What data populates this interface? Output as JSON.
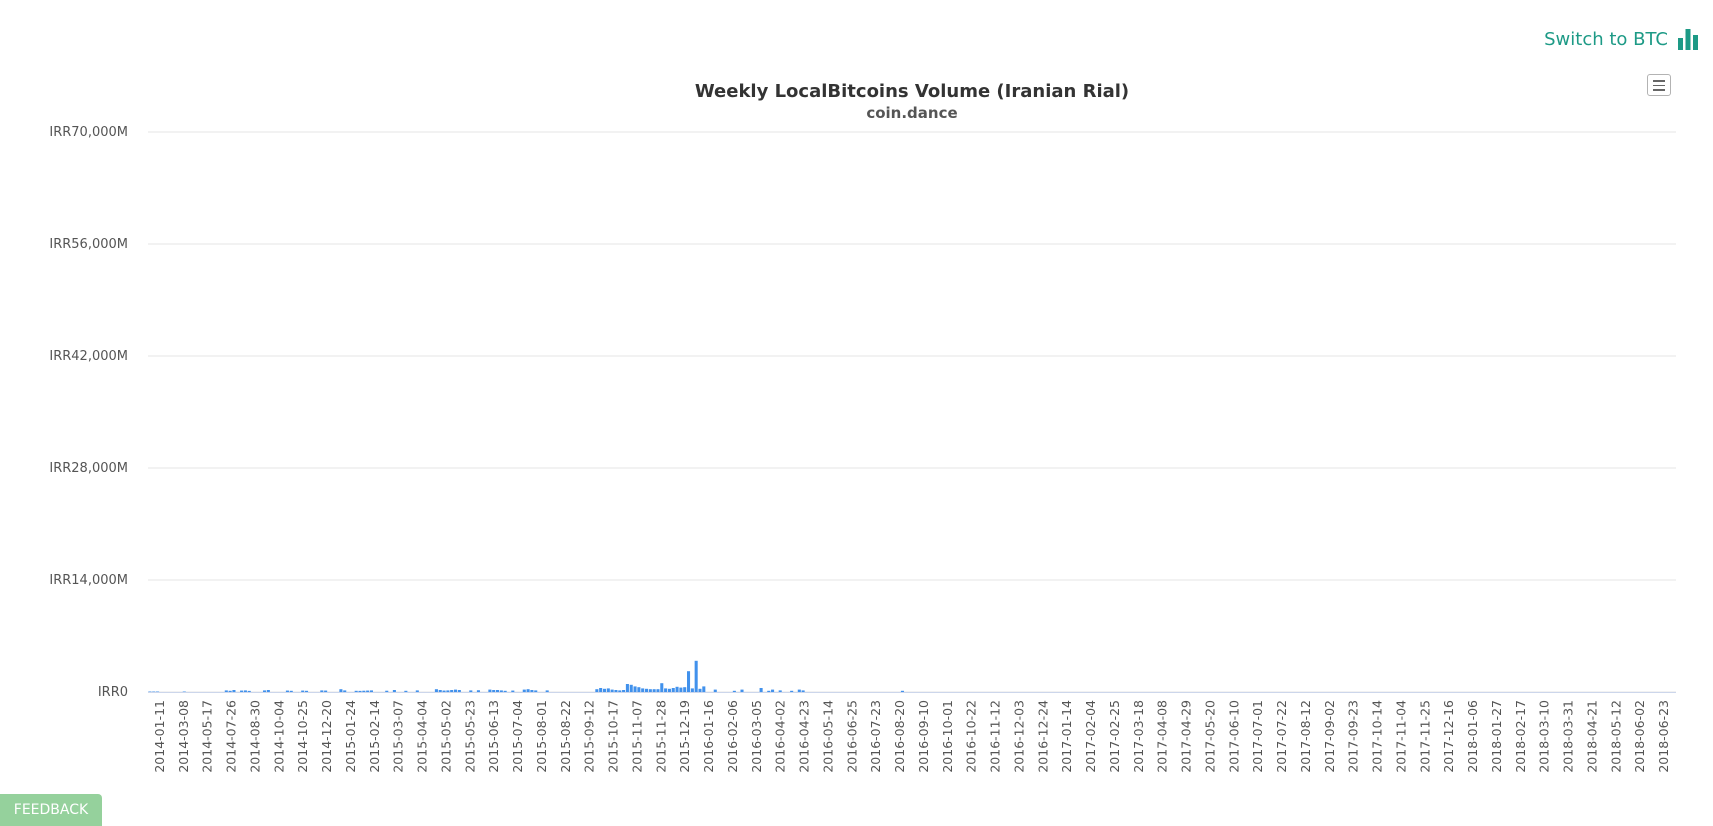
{
  "header": {
    "switch_label": "Switch to BTC",
    "switch_icon": "bar-chart-icon",
    "accent_color": "#1d9a86"
  },
  "feedback": {
    "label": "FEEDBACK",
    "color": "#95d19c"
  },
  "menu": {
    "icon": "hamburger-menu-icon"
  },
  "chart_data": {
    "type": "bar",
    "title": "Weekly LocalBitcoins Volume (Iranian Rial)",
    "subtitle": "coin.dance",
    "xlabel": "",
    "ylabel": "",
    "currency_prefix": "IRR",
    "unit_suffix": "M",
    "ylim": [
      0,
      70000
    ],
    "yticks": [
      0,
      14000,
      28000,
      42000,
      56000,
      70000
    ],
    "grid": true,
    "legend": "none",
    "bar_color": "#4191ec",
    "start_date": "2014-01-11",
    "xtick_labels": [
      "2014-01-11",
      "2014-03-08",
      "2014-05-17",
      "2014-07-26",
      "2014-08-30",
      "2014-10-04",
      "2014-10-25",
      "2014-12-20",
      "2015-01-24",
      "2015-02-14",
      "2015-03-07",
      "2015-04-04",
      "2015-05-02",
      "2015-05-23",
      "2015-06-13",
      "2015-07-04",
      "2015-08-01",
      "2015-08-22",
      "2015-09-12",
      "2015-10-17",
      "2015-11-07",
      "2015-11-28",
      "2015-12-19",
      "2016-01-16",
      "2016-02-06",
      "2016-03-05",
      "2016-04-02",
      "2016-04-23",
      "2016-05-14",
      "2016-06-25",
      "2016-07-23",
      "2016-08-20",
      "2016-09-10",
      "2016-10-01",
      "2016-10-22",
      "2016-11-12",
      "2016-12-03",
      "2016-12-24",
      "2017-01-14",
      "2017-02-04",
      "2017-02-25",
      "2017-03-18",
      "2017-04-08",
      "2017-04-29",
      "2017-05-20",
      "2017-06-10",
      "2017-07-01",
      "2017-07-22",
      "2017-08-12",
      "2017-09-02",
      "2017-09-23",
      "2017-10-14",
      "2017-11-04",
      "2017-11-25",
      "2017-12-16",
      "2018-01-06",
      "2018-01-27",
      "2018-02-17",
      "2018-03-10",
      "2018-03-31",
      "2018-04-21",
      "2018-05-12",
      "2018-06-02",
      "2018-06-23"
    ],
    "values": [
      60,
      60,
      60,
      0,
      0,
      0,
      0,
      0,
      0,
      60,
      0,
      0,
      0,
      0,
      0,
      0,
      0,
      0,
      0,
      0,
      200,
      150,
      250,
      0,
      180,
      200,
      140,
      0,
      0,
      0,
      200,
      250,
      0,
      0,
      0,
      0,
      180,
      150,
      0,
      0,
      180,
      150,
      0,
      0,
      0,
      200,
      180,
      0,
      0,
      0,
      350,
      200,
      0,
      0,
      150,
      140,
      160,
      180,
      200,
      0,
      0,
      0,
      160,
      0,
      250,
      0,
      0,
      150,
      0,
      0,
      200,
      0,
      0,
      0,
      0,
      350,
      250,
      180,
      200,
      250,
      300,
      250,
      0,
      0,
      200,
      0,
      220,
      0,
      0,
      300,
      250,
      250,
      200,
      150,
      0,
      180,
      0,
      0,
      300,
      350,
      250,
      200,
      0,
      0,
      200,
      0,
      0,
      0,
      0,
      0,
      0,
      0,
      0,
      0,
      0,
      0,
      0,
      350,
      500,
      400,
      450,
      300,
      250,
      200,
      250,
      1000,
      900,
      700,
      600,
      450,
      400,
      350,
      350,
      350,
      1100,
      450,
      400,
      500,
      650,
      550,
      600,
      2600,
      450,
      3900,
      400,
      700,
      0,
      0,
      300,
      0,
      0,
      0,
      0,
      150,
      0,
      300,
      0,
      0,
      0,
      0,
      500,
      0,
      150,
      300,
      0,
      200,
      0,
      0,
      150,
      0,
      300,
      200,
      0,
      0,
      0,
      0,
      0,
      0,
      0,
      0,
      0,
      0,
      0,
      0,
      0,
      0,
      0,
      0,
      0,
      0,
      0,
      0,
      0,
      0,
      0,
      0,
      0,
      150,
      0,
      0,
      0,
      0,
      0,
      0,
      0,
      0,
      0,
      0,
      0,
      0,
      0,
      0,
      0,
      0,
      0,
      0,
      0,
      0,
      0,
      0,
      0,
      0,
      0,
      0,
      0,
      0,
      0,
      0,
      0,
      0,
      0,
      0,
      0,
      0,
      0,
      0,
      0,
      0,
      0,
      0,
      0,
      0,
      0,
      0,
      0,
      0,
      0,
      0,
      0,
      0,
      0,
      0,
      0,
      0,
      0,
      0,
      0,
      0,
      0,
      0,
      0,
      0,
      0,
      0,
      0,
      0,
      0,
      0,
      0,
      0,
      0,
      0,
      0,
      0,
      0,
      0,
      0,
      0,
      0,
      0,
      0,
      0,
      0,
      0,
      0,
      0,
      0,
      0,
      0,
      0,
      0,
      0,
      0,
      0,
      0,
      0,
      0,
      0,
      0,
      0,
      0,
      0,
      0,
      0,
      0,
      0,
      0,
      0,
      0,
      0,
      0,
      0,
      0,
      0,
      0,
      0,
      0,
      0,
      0,
      0,
      0,
      0,
      0,
      0,
      0,
      0,
      0,
      0,
      0,
      0,
      0,
      0,
      0,
      0,
      0,
      0,
      0,
      0,
      0,
      0,
      0,
      0,
      0,
      0,
      0,
      0,
      0,
      0,
      0,
      0,
      0,
      0,
      0,
      0,
      0,
      0,
      0,
      0,
      0,
      0,
      0,
      0,
      0,
      0,
      0,
      0,
      0,
      0,
      0,
      0,
      0,
      0,
      0,
      0,
      0,
      0,
      0,
      0,
      0,
      0,
      0,
      0,
      0,
      0,
      0,
      0,
      0,
      0,
      0,
      0,
      0,
      0,
      0,
      0,
      0,
      0,
      0,
      0,
      0,
      0
    ]
  }
}
